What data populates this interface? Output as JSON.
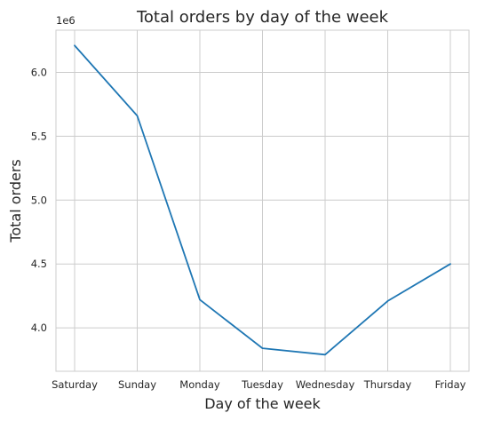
{
  "chart_data": {
    "type": "line",
    "title": "Total orders by day of the week",
    "xlabel": "Day of the week",
    "ylabel": "Total orders",
    "y_offset_label": "1e6",
    "categories": [
      "Saturday",
      "Sunday",
      "Monday",
      "Tuesday",
      "Wednesday",
      "Thursday",
      "Friday"
    ],
    "series": [
      {
        "values": [
          6.21,
          5.66,
          4.22,
          3.84,
          3.79,
          4.21,
          4.5
        ]
      }
    ],
    "y_ticks": [
      4.0,
      4.5,
      5.0,
      5.5,
      6.0
    ],
    "y_tick_labels": [
      "4.0",
      "4.5",
      "5.0",
      "5.5",
      "6.0"
    ],
    "ylim": [
      3.66,
      6.33
    ],
    "grid": true,
    "line_color": "#1f77b4"
  }
}
